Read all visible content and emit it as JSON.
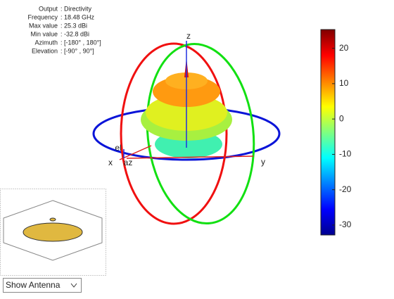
{
  "info": {
    "rows": [
      {
        "label": "Output",
        "value": ": Directivity"
      },
      {
        "label": "Frequency",
        "value": ": 18.48 GHz"
      },
      {
        "label": "Max value",
        "value": ": 25.3 dBi"
      },
      {
        "label": "Min value",
        "value": ": -32.8 dBi"
      },
      {
        "label": "Azimuth",
        "value": ": [-180° , 180°]"
      },
      {
        "label": "Elevation",
        "value": ": [-90° , 90°]"
      }
    ]
  },
  "axes": {
    "x": "x",
    "y": "y",
    "z": "z",
    "az": "az",
    "el": "el"
  },
  "colorbar": {
    "lim": [
      -32.8,
      25.3
    ],
    "ticks": [
      20,
      10,
      0,
      -10,
      -20,
      -30
    ],
    "colormap": "jet"
  },
  "antenna_view": {
    "dropdown": "Show Antenna"
  }
}
